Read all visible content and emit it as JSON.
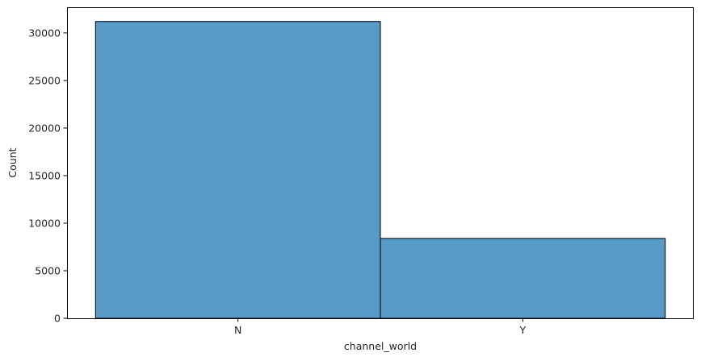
{
  "chart_data": {
    "type": "bar",
    "categories": [
      "N",
      "Y"
    ],
    "values": [
      31200,
      8400
    ],
    "xlabel": "channel_world",
    "ylabel": "Count",
    "ylim": [
      0,
      32700
    ],
    "yticks": [
      0,
      5000,
      10000,
      15000,
      20000,
      25000,
      30000
    ],
    "bar_color": "#5799c7",
    "bar_edge_color": "#000000",
    "grid": false,
    "legend": "none"
  }
}
